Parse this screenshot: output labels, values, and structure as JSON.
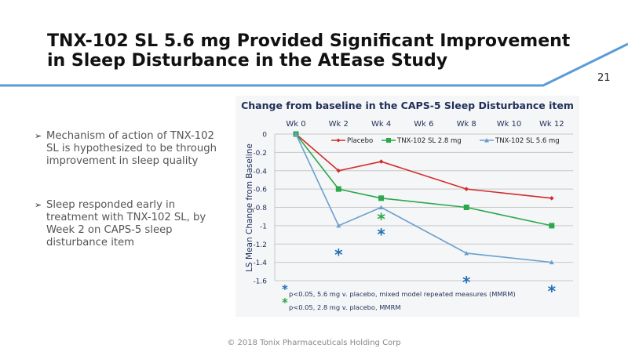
{
  "slide": {
    "title_line1": "TNX-102 SL 5.6 mg Provided Significant Improvement",
    "title_line2": "in Sleep Disturbance in the AtEase Study",
    "page_number": "21",
    "accent_color": "#5b9bd5",
    "footer": "© 2018 Tonix Pharmaceuticals Holding Corp"
  },
  "bullets": [
    {
      "icon": "arrowhead-bullet",
      "symbol": "➢",
      "text": "Mechanism of action of TNX-102 SL is hypothesized to be through improvement in sleep quality"
    },
    {
      "icon": "arrowhead-bullet",
      "symbol": "➢",
      "text": "Sleep responded early in treatment with TNX-102 SL, by Week 2 on CAPS-5 sleep disturbance item"
    }
  ],
  "chart_data": {
    "type": "line",
    "title": "Change from baseline in the CAPS-5 Sleep Disturbance item",
    "xlabel": "",
    "ylabel": "LS Mean Change from Baseline",
    "categories": [
      "Wk 0",
      "Wk 2",
      "Wk 4",
      "Wk 6",
      "Wk 8",
      "Wk 10",
      "Wk 12"
    ],
    "x_axis_position": "top",
    "ylim": [
      -1.6,
      0
    ],
    "yticks": [
      0,
      -0.2,
      -0.4,
      -0.6,
      -0.8,
      -1,
      -1.2,
      -1.4,
      -1.6
    ],
    "ytick_labels": [
      "0",
      "-0.2",
      "-0.4",
      "-0.6",
      "-0.8",
      "-1",
      "-1.2",
      "-1.4",
      "-1.6"
    ],
    "grid": true,
    "legend_position": "top-right",
    "series": [
      {
        "name": "Placebo",
        "color": "#d42a2a",
        "marker": "diamond",
        "x": [
          0,
          2,
          4,
          8,
          12
        ],
        "values": [
          0,
          -0.4,
          -0.3,
          -0.6,
          -0.7
        ]
      },
      {
        "name": "TNX-102 SL 2.8 mg",
        "color": "#2aa84a",
        "marker": "square",
        "x": [
          0,
          2,
          4,
          8,
          12
        ],
        "values": [
          0,
          -0.6,
          -0.7,
          -0.8,
          -1.0
        ]
      },
      {
        "name": "TNX-102 SL 5.6 mg",
        "color": "#6a9fcf",
        "marker": "triangle",
        "x": [
          0,
          2,
          4,
          8,
          12
        ],
        "values": [
          0,
          -1.0,
          -0.8,
          -1.3,
          -1.4
        ]
      }
    ],
    "significance_markers": [
      {
        "symbol": "*",
        "series": "TNX-102 SL 5.6 mg",
        "color": "#1f6fb5",
        "x": [
          2,
          4,
          8,
          12
        ]
      },
      {
        "symbol": "*",
        "series": "TNX-102 SL 2.8 mg",
        "color": "#2aa84a",
        "x": [
          4
        ]
      }
    ],
    "footnotes": [
      {
        "symbol": "*",
        "color": "#1f6fb5",
        "text": "p<0.05, 5.6 mg v. placebo, mixed model repeated measures (MMRM)"
      },
      {
        "symbol": "*",
        "color": "#2aa84a",
        "text": "p<0.05, 2.8 mg v. placebo, MMRM"
      }
    ]
  }
}
